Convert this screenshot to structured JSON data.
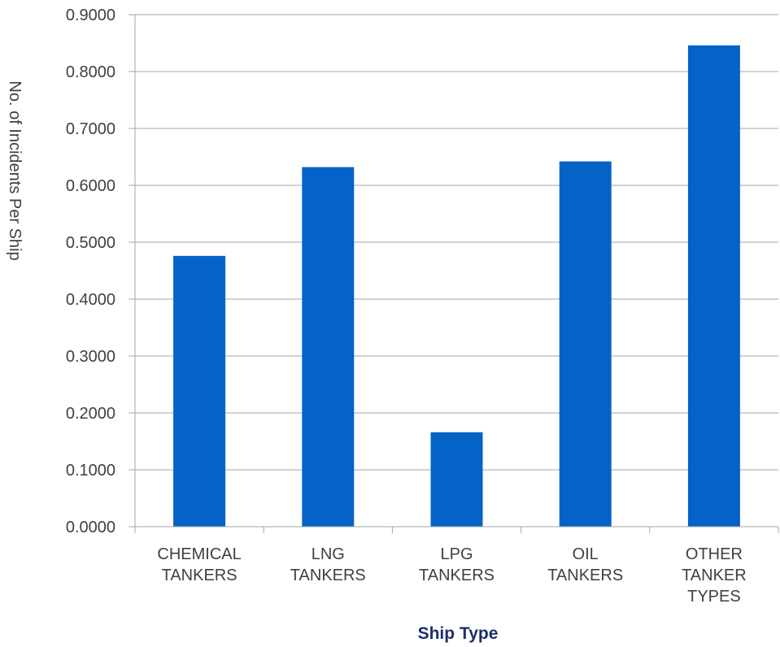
{
  "chart_data": {
    "type": "bar",
    "title": "",
    "xlabel": "Ship Type",
    "ylabel": "No. of Incidents Per Ship",
    "categories": [
      [
        "CHEMICAL",
        "TANKERS"
      ],
      [
        "LNG",
        "TANKERS"
      ],
      [
        "LPG",
        "TANKERS"
      ],
      [
        "OIL",
        "TANKERS"
      ],
      [
        "OTHER",
        "TANKER",
        "TYPES"
      ]
    ],
    "values": [
      0.476,
      0.632,
      0.166,
      0.642,
      0.846
    ],
    "ylim": [
      0,
      0.9
    ],
    "yticks": [
      "0.0000",
      "0.1000",
      "0.2000",
      "0.3000",
      "0.4000",
      "0.5000",
      "0.6000",
      "0.7000",
      "0.8000",
      "0.9000"
    ],
    "grid": true,
    "bar_color": "#0563c8",
    "grid_color": "#a6a6a6"
  }
}
